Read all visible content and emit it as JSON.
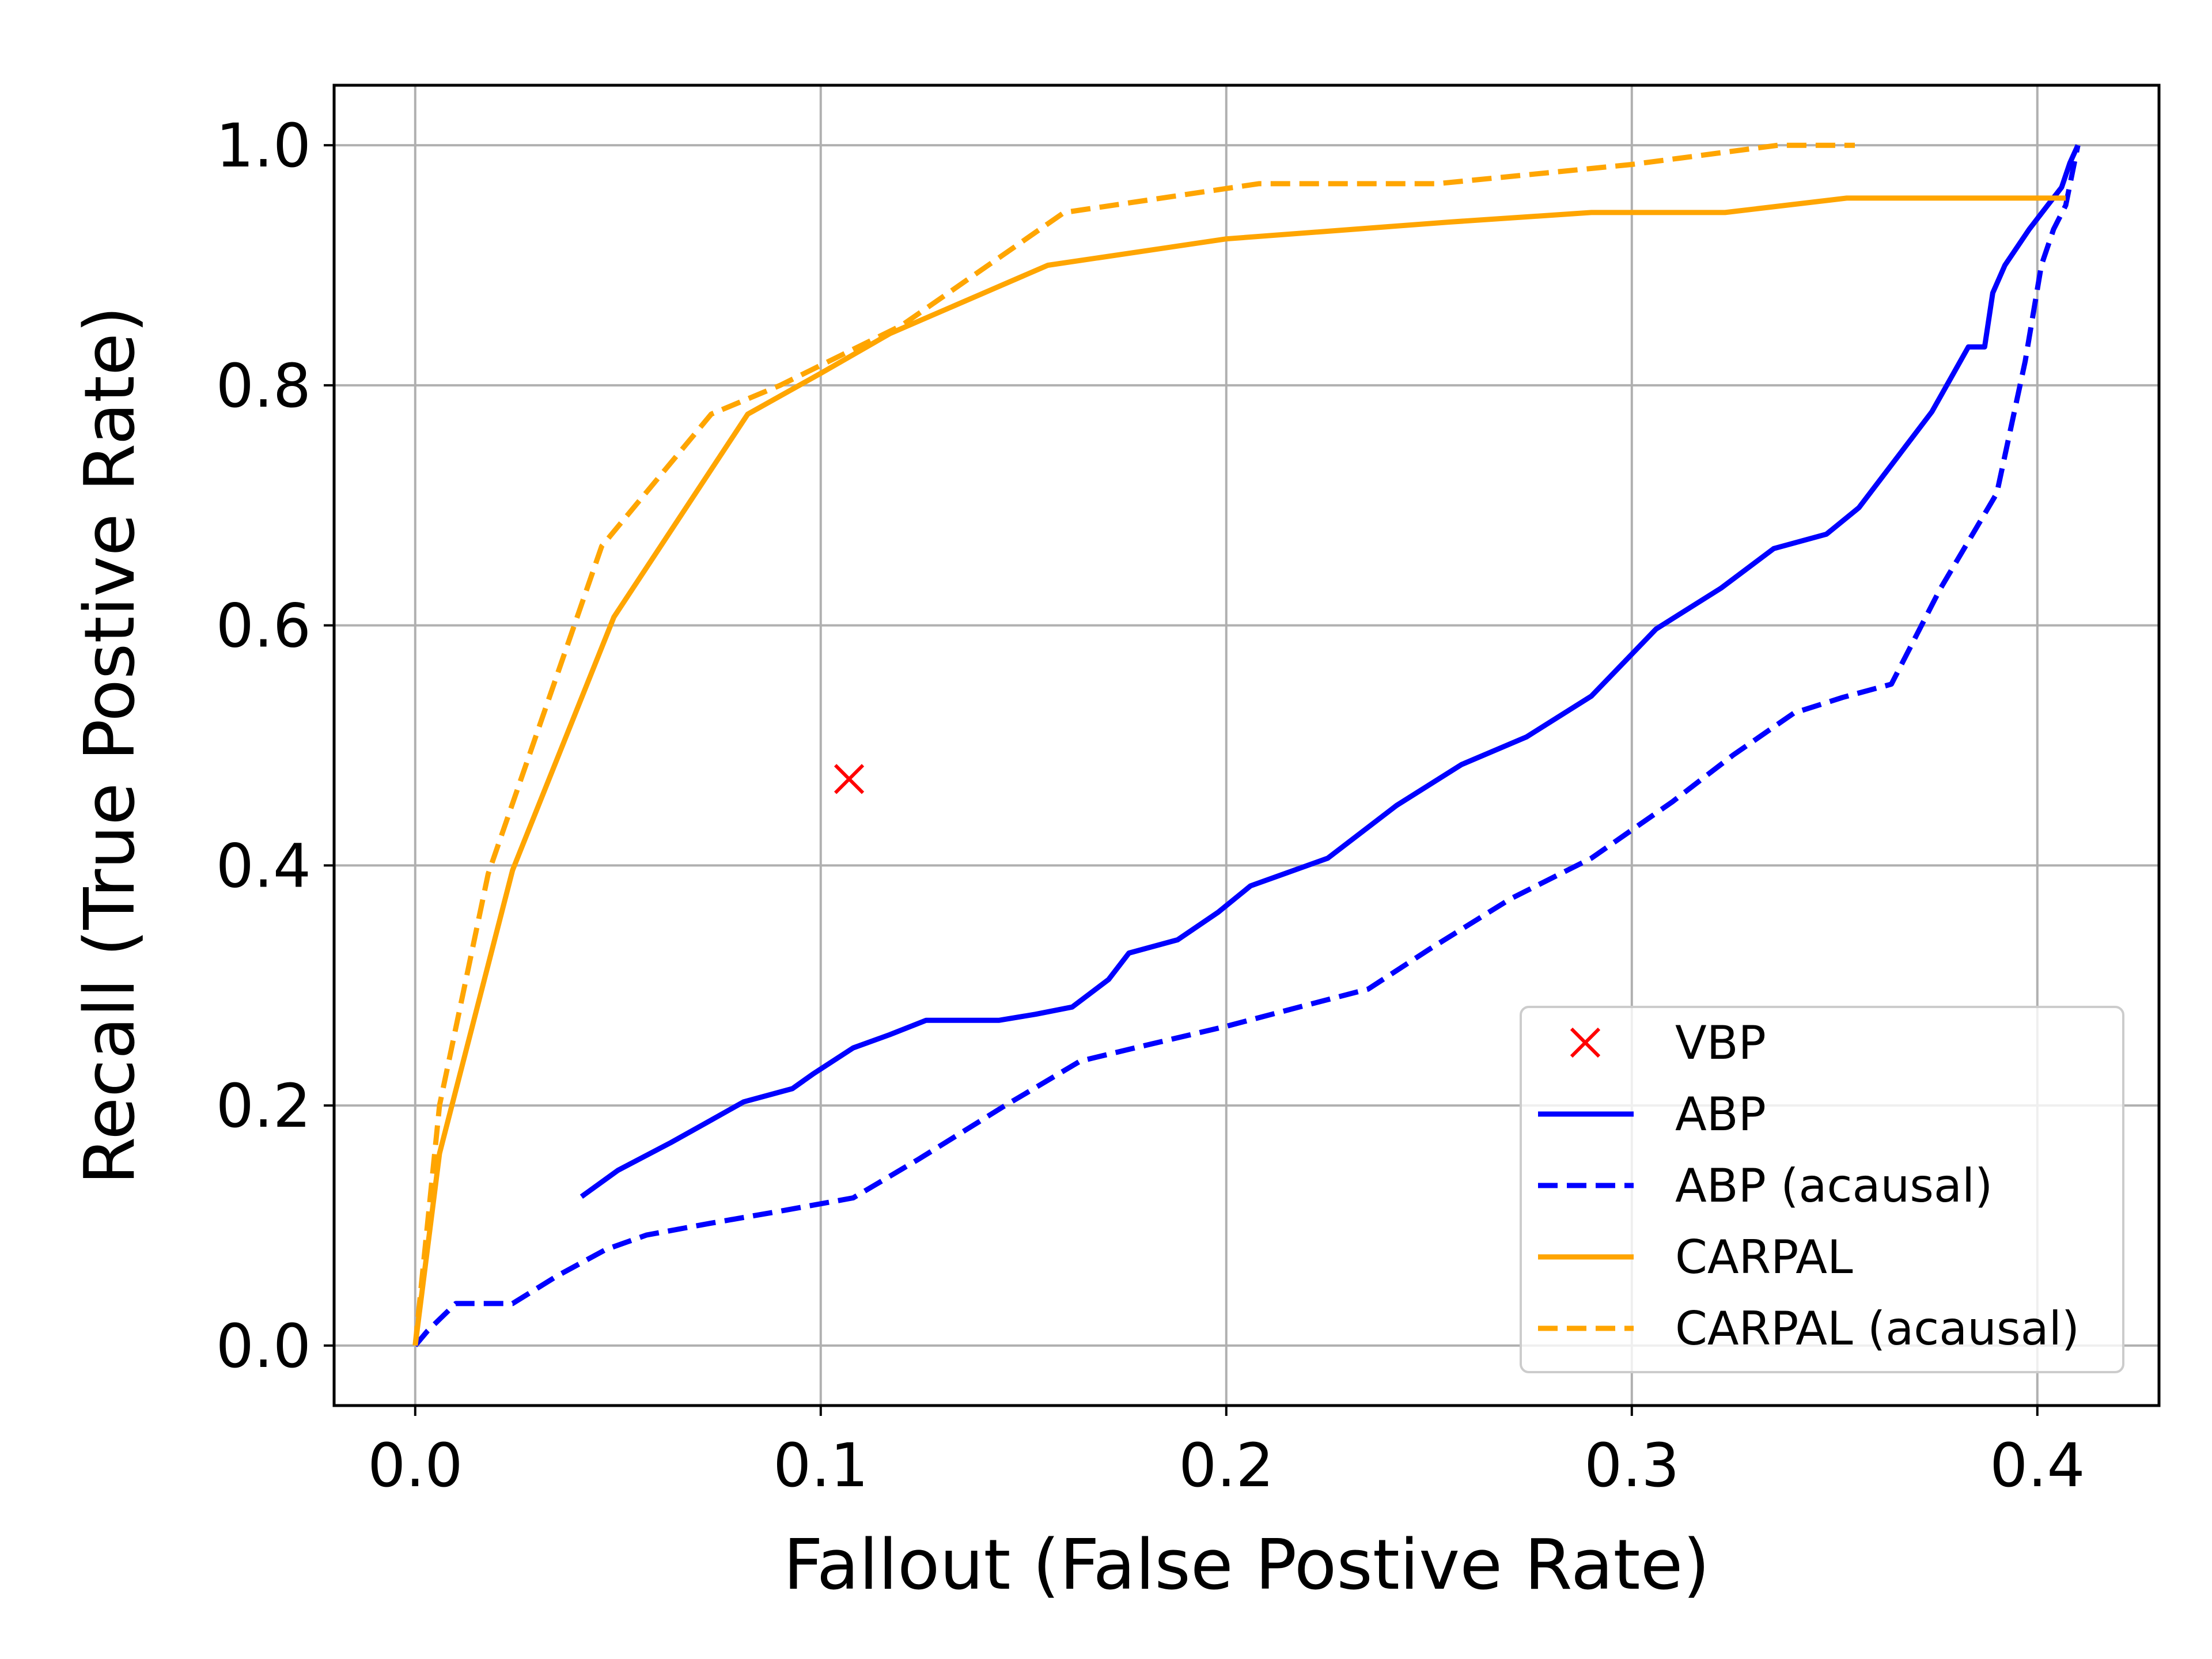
{
  "chart_data": {
    "type": "line",
    "title": "",
    "xlabel": "Fallout (False Postive Rate)",
    "ylabel": "Recall (True Postive Rate)",
    "xlim": [
      -0.02,
      0.43
    ],
    "ylim": [
      -0.05,
      1.05
    ],
    "grid": true,
    "legend_position": "lower-right",
    "xticks": [
      0.0,
      0.1,
      0.2,
      0.3,
      0.4
    ],
    "xtick_labels": [
      "0.0",
      "0.1",
      "0.2",
      "0.3",
      "0.4"
    ],
    "yticks": [
      0.0,
      0.2,
      0.4,
      0.6,
      0.8,
      1.0
    ],
    "ytick_labels": [
      "0.0",
      "0.2",
      "0.4",
      "0.6",
      "0.8",
      "1.0"
    ],
    "series": [
      {
        "name": "VBP",
        "kind": "marker",
        "marker": "x",
        "color": "#ff0000",
        "x": [
          0.107
        ],
        "y": [
          0.472
        ]
      },
      {
        "name": "ABP",
        "kind": "line",
        "dash": "solid",
        "color": "#0000ff",
        "x": [
          0.041,
          0.05,
          0.063,
          0.072,
          0.081,
          0.093,
          0.098,
          0.108,
          0.117,
          0.126,
          0.135,
          0.144,
          0.153,
          0.162,
          0.171,
          0.176,
          0.188,
          0.198,
          0.206,
          0.225,
          0.242,
          0.258,
          0.274,
          0.29,
          0.306,
          0.322,
          0.335,
          0.348,
          0.356,
          0.365,
          0.374,
          0.383,
          0.387,
          0.389,
          0.392,
          0.398,
          0.403,
          0.406,
          0.408,
          0.41
        ],
        "y": [
          0.124,
          0.146,
          0.169,
          0.186,
          0.203,
          0.214,
          0.226,
          0.248,
          0.259,
          0.271,
          0.271,
          0.271,
          0.276,
          0.282,
          0.305,
          0.327,
          0.338,
          0.361,
          0.383,
          0.406,
          0.45,
          0.484,
          0.507,
          0.541,
          0.597,
          0.631,
          0.664,
          0.676,
          0.698,
          0.738,
          0.778,
          0.832,
          0.832,
          0.877,
          0.9,
          0.93,
          0.952,
          0.965,
          0.985,
          1.0
        ]
      },
      {
        "name": "ABP (acausal)",
        "kind": "line",
        "dash": "dashed",
        "color": "#0000ff",
        "x": [
          0.0,
          0.003,
          0.01,
          0.024,
          0.035,
          0.047,
          0.057,
          0.073,
          0.09,
          0.108,
          0.124,
          0.145,
          0.164,
          0.18,
          0.2,
          0.218,
          0.235,
          0.25,
          0.27,
          0.29,
          0.31,
          0.325,
          0.34,
          0.352,
          0.364,
          0.376,
          0.39,
          0.397,
          0.401,
          0.404,
          0.407,
          0.41
        ],
        "y": [
          0.0,
          0.012,
          0.035,
          0.035,
          0.058,
          0.08,
          0.092,
          0.102,
          0.112,
          0.123,
          0.155,
          0.199,
          0.237,
          0.25,
          0.266,
          0.282,
          0.297,
          0.33,
          0.372,
          0.406,
          0.453,
          0.492,
          0.527,
          0.54,
          0.551,
          0.63,
          0.71,
          0.82,
          0.9,
          0.93,
          0.95,
          1.0
        ]
      },
      {
        "name": "CARPAL",
        "kind": "line",
        "dash": "solid",
        "color": "#ffa500",
        "x": [
          0.0,
          0.006,
          0.024,
          0.049,
          0.082,
          0.1,
          0.117,
          0.156,
          0.2,
          0.255,
          0.29,
          0.323,
          0.353,
          0.38,
          0.407
        ],
        "y": [
          0.0,
          0.16,
          0.396,
          0.607,
          0.776,
          0.81,
          0.843,
          0.9,
          0.922,
          0.936,
          0.944,
          0.944,
          0.956,
          0.956,
          0.956
        ]
      },
      {
        "name": "CARPAL (acausal)",
        "kind": "line",
        "dash": "dashed",
        "color": "#ffa500",
        "x": [
          0.0,
          0.006,
          0.018,
          0.046,
          0.073,
          0.09,
          0.12,
          0.16,
          0.208,
          0.252,
          0.3,
          0.336,
          0.355
        ],
        "y": [
          0.0,
          0.2,
          0.393,
          0.666,
          0.776,
          0.8,
          0.85,
          0.944,
          0.968,
          0.968,
          0.984,
          1.0,
          1.0
        ]
      }
    ]
  }
}
